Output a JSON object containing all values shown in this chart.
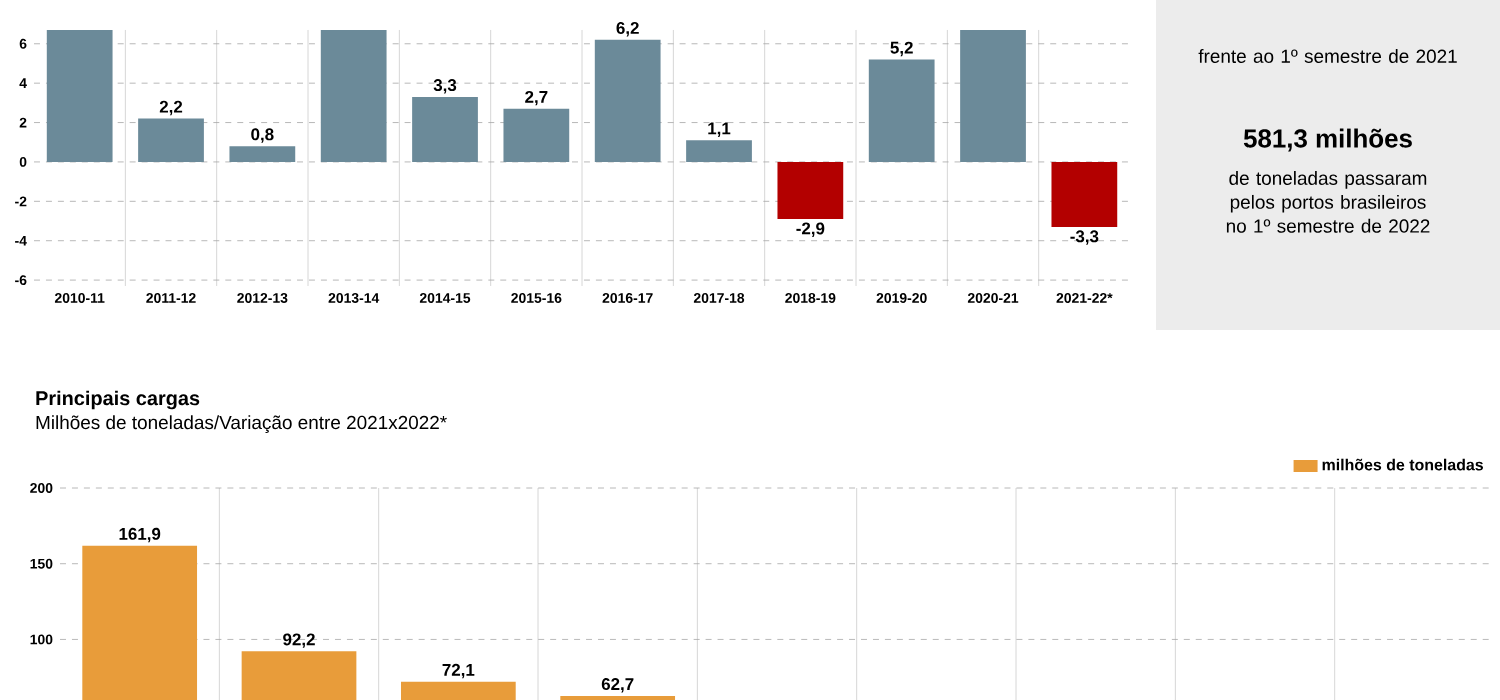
{
  "chart_data": [
    {
      "type": "bar",
      "categories": [
        "2010-11",
        "2011-12",
        "2012-13",
        "2013-14",
        "2014-15",
        "2015-16",
        "2016-17",
        "2017-18",
        "2018-19",
        "2019-20",
        "2020-21",
        "2021-22*"
      ],
      "values": [
        6.7,
        2.2,
        0.8,
        6.7,
        3.3,
        2.7,
        6.2,
        1.1,
        -2.9,
        5.2,
        6.7,
        -3.3
      ],
      "value_labels": [
        null,
        "2,2",
        "0,8",
        null,
        "3,3",
        "2,7",
        "6,2",
        "1,1",
        "-2,9",
        "5,2",
        null,
        "-3,3"
      ],
      "colors": [
        "#6b8a99",
        "#6b8a99",
        "#6b8a99",
        "#6b8a99",
        "#6b8a99",
        "#6b8a99",
        "#6b8a99",
        "#6b8a99",
        "#b30000",
        "#6b8a99",
        "#6b8a99",
        "#b30000"
      ],
      "ylim": [
        -6.3,
        6.7
      ],
      "yticks": [
        -6,
        -4,
        -2,
        0,
        2,
        4,
        6
      ],
      "grid": true,
      "annotations": [
        "frente ao 1º semestre de 2021",
        "581,3 milhões",
        "de toneladas passaram pelos portos brasileiros no 1º semestre de 2022"
      ]
    },
    {
      "type": "bar",
      "title": "Principais cargas",
      "subtitle": "Milhões de toneladas/Variação entre 2021x2022*",
      "categories": [
        null,
        null,
        null,
        null,
        null,
        null,
        null,
        null,
        null
      ],
      "series": [
        {
          "name": "milhões de toneladas",
          "color": "#e89c3a",
          "values": [
            161.9,
            92.2,
            72.1,
            62.7,
            null,
            null,
            null,
            null,
            null
          ]
        }
      ],
      "value_labels": [
        "161,9",
        "92,2",
        "72,1",
        "62,7",
        null,
        null,
        null,
        null,
        null
      ],
      "ylim": [
        60,
        200
      ],
      "yticks": [
        100,
        150,
        200
      ],
      "grid": true,
      "legend": "top right"
    }
  ]
}
